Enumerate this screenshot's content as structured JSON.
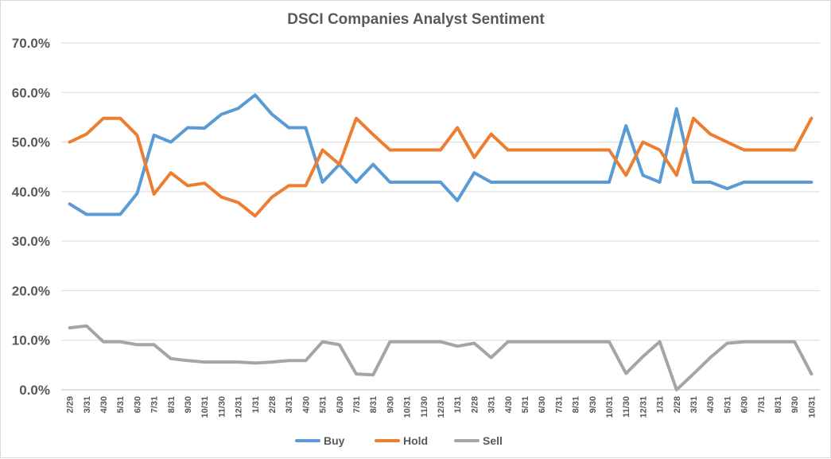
{
  "chart_data": {
    "type": "line",
    "title": "DSCI Companies Analyst Sentiment",
    "xlabel": "",
    "ylabel": "",
    "ylim": [
      0,
      70
    ],
    "y_ticks": [
      "0.0%",
      "10.0%",
      "20.0%",
      "30.0%",
      "40.0%",
      "50.0%",
      "60.0%",
      "70.0%"
    ],
    "grid": true,
    "legend_position": "bottom",
    "categories": [
      "2/29",
      "3/31",
      "4/30",
      "5/31",
      "6/30",
      "7/31",
      "8/31",
      "9/30",
      "10/31",
      "11/30",
      "12/31",
      "1/31",
      "2/28",
      "3/31",
      "4/30",
      "5/31",
      "6/30",
      "7/31",
      "8/31",
      "9/30",
      "10/31",
      "11/30",
      "12/31",
      "1/31",
      "2/28",
      "3/31",
      "4/30",
      "5/31",
      "6/30",
      "7/31",
      "8/31",
      "9/30",
      "10/31",
      "11/30",
      "12/31",
      "1/31",
      "2/28",
      "3/31",
      "4/30",
      "5/31",
      "6/30",
      "7/31",
      "8/31",
      "9/30",
      "10/31"
    ],
    "series": [
      {
        "name": "Buy",
        "color": "#5b9bd5",
        "values": [
          37.5,
          35.4,
          35.4,
          35.4,
          39.6,
          51.4,
          50.0,
          52.9,
          52.8,
          55.6,
          56.8,
          59.5,
          55.6,
          52.9,
          52.9,
          41.9,
          45.5,
          41.9,
          45.5,
          41.9,
          41.9,
          41.9,
          41.9,
          38.2,
          43.8,
          41.9,
          41.9,
          41.9,
          41.9,
          41.9,
          41.9,
          41.9,
          41.9,
          53.3,
          43.3,
          41.9,
          56.7,
          41.9,
          41.9,
          40.6,
          41.9,
          41.9,
          41.9,
          41.9,
          41.9
        ]
      },
      {
        "name": "Hold",
        "color": "#ed7d31",
        "values": [
          50.0,
          51.6,
          54.8,
          54.8,
          51.4,
          39.5,
          43.8,
          41.2,
          41.7,
          38.9,
          37.8,
          35.1,
          38.9,
          41.2,
          41.2,
          48.4,
          45.5,
          54.8,
          51.5,
          48.4,
          48.4,
          48.4,
          48.4,
          52.9,
          46.9,
          51.6,
          48.4,
          48.4,
          48.4,
          48.4,
          48.4,
          48.4,
          48.4,
          43.3,
          50.0,
          48.4,
          43.3,
          54.8,
          51.6,
          50.0,
          48.4,
          48.4,
          48.4,
          48.4,
          54.8
        ]
      },
      {
        "name": "Sell",
        "color": "#a5a5a5",
        "values": [
          12.5,
          12.9,
          9.7,
          9.7,
          9.1,
          9.1,
          6.3,
          5.9,
          5.6,
          5.6,
          5.6,
          5.4,
          5.6,
          5.9,
          5.9,
          9.7,
          9.1,
          3.2,
          3.0,
          9.7,
          9.7,
          9.7,
          9.7,
          8.8,
          9.4,
          6.5,
          9.7,
          9.7,
          9.7,
          9.7,
          9.7,
          9.7,
          9.7,
          3.3,
          6.7,
          9.7,
          0.0,
          3.2,
          6.5,
          9.4,
          9.7,
          9.7,
          9.7,
          9.7,
          3.2
        ]
      }
    ]
  }
}
